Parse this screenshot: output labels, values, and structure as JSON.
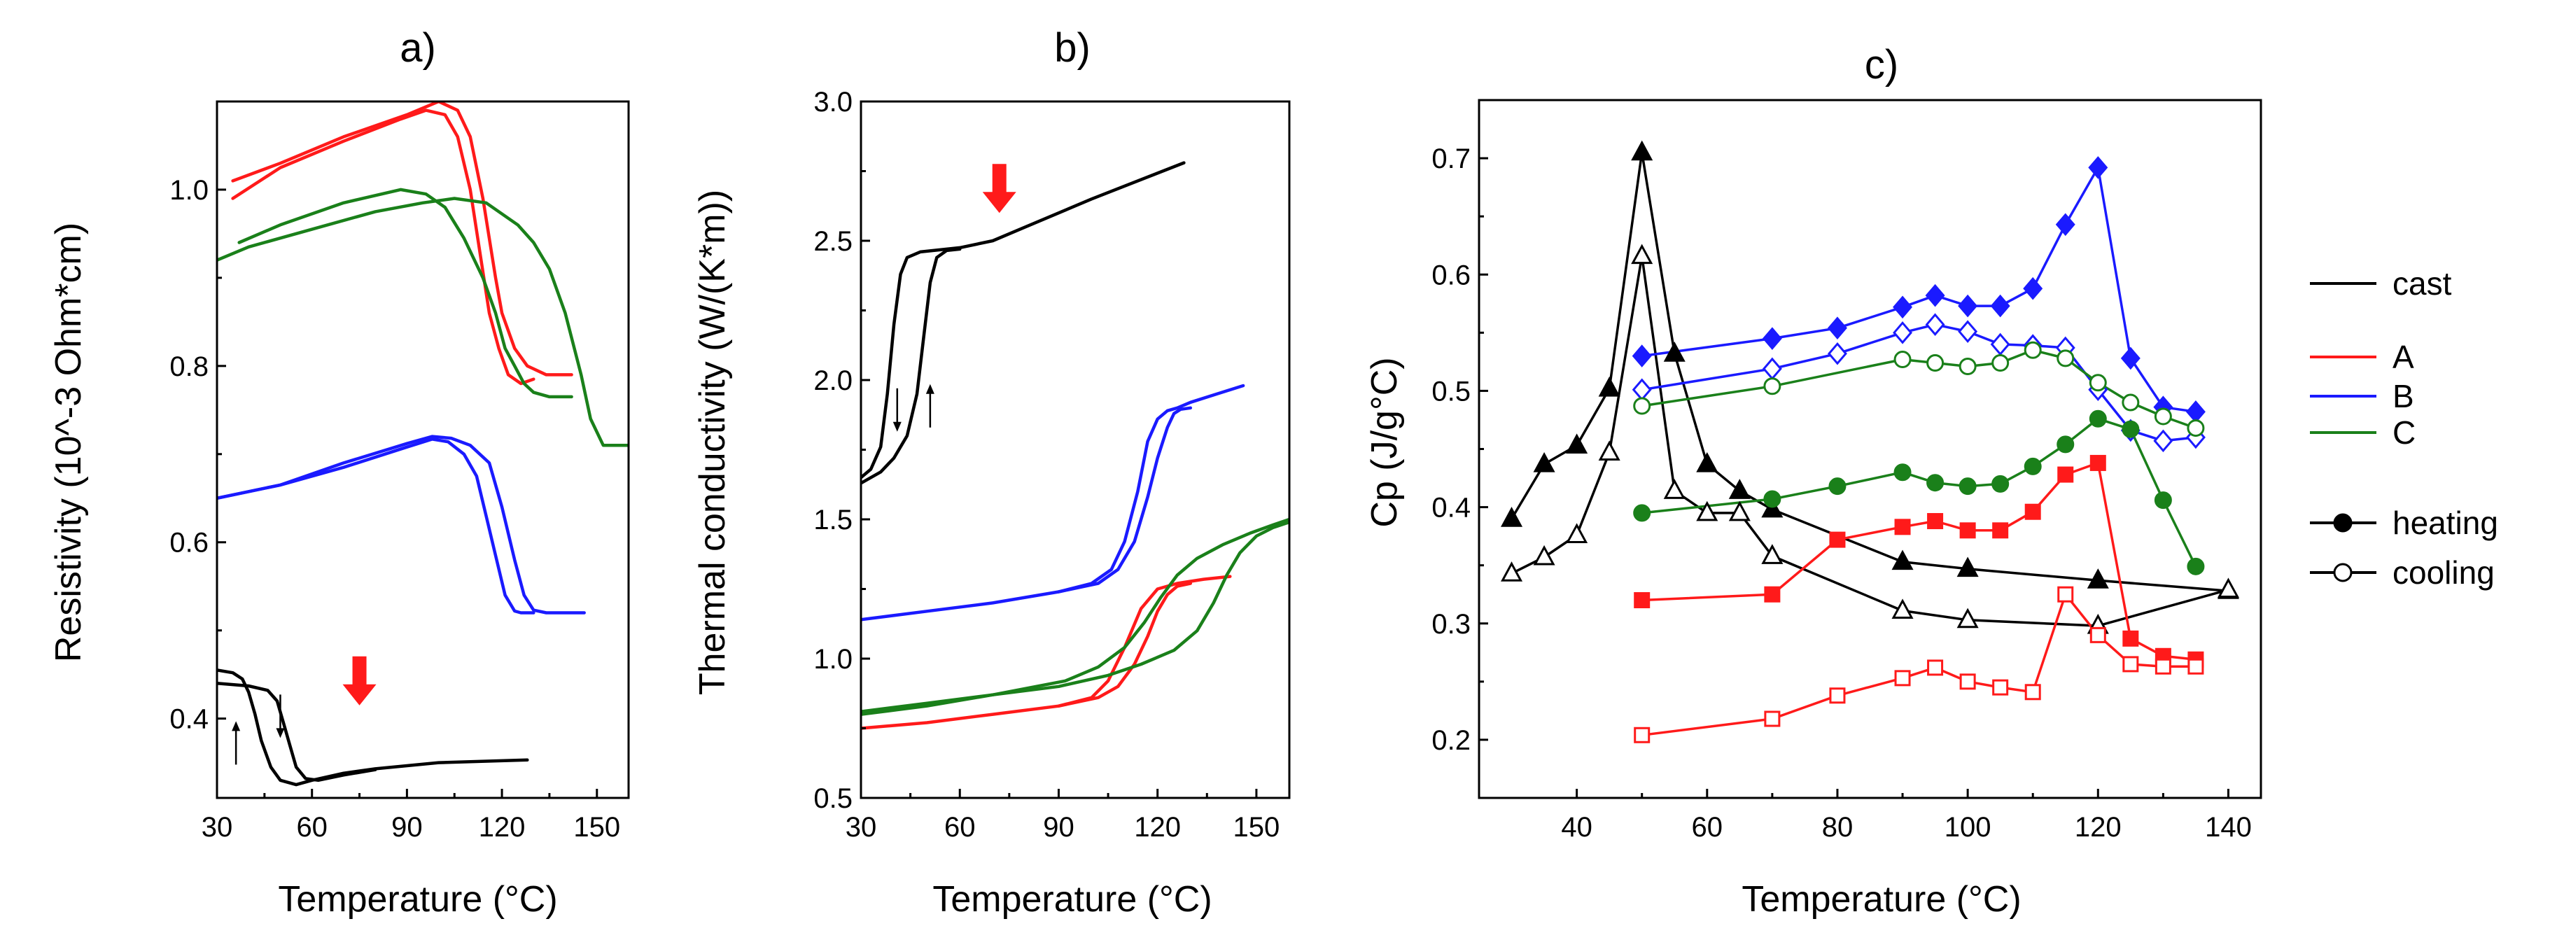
{
  "colors": {
    "cast": "#000000",
    "A": "#ff1a1a",
    "B": "#1a1aff",
    "C": "#1a801a",
    "arrow": "#ff1a1a"
  },
  "legend": {
    "series": [
      {
        "label": "cast",
        "color": "#000000"
      },
      {
        "label": "A",
        "color": "#ff1a1a"
      },
      {
        "label": "B",
        "color": "#1a1aff"
      },
      {
        "label": "C",
        "color": "#1a801a"
      }
    ],
    "markers": [
      {
        "label": "heating",
        "filled": true
      },
      {
        "label": "cooling",
        "filled": false
      }
    ]
  },
  "chart_data": [
    {
      "panel": "a)",
      "type": "line",
      "xlabel": "Temperature (°C)",
      "ylabel": "Resistivity (10^-3 Ohm*cm)",
      "xlim": [
        30,
        160
      ],
      "ylim": [
        0.31,
        1.1
      ],
      "xticks": [
        30,
        60,
        90,
        120,
        150
      ],
      "yticks": [
        0.4,
        0.6,
        0.8,
        1.0
      ],
      "xtick_labels": [
        "30",
        "60",
        "90",
        "120",
        "150"
      ],
      "ytick_labels": [
        "0.4",
        "0.6",
        "0.8",
        "1.0"
      ],
      "arrow_marker_x": 75,
      "series": [
        {
          "name": "A",
          "color": "#ff1a1a",
          "x": [
            35,
            50,
            70,
            90,
            100,
            106,
            110,
            114,
            118,
            120,
            124,
            128,
            134,
            142
          ],
          "y": [
            1.01,
            1.03,
            1.06,
            1.085,
            1.1,
            1.09,
            1.06,
            0.99,
            0.9,
            0.86,
            0.82,
            0.8,
            0.79,
            0.79
          ]
        },
        {
          "name": "A",
          "color": "#ff1a1a",
          "x": [
            35,
            50,
            70,
            88,
            96,
            102,
            106,
            110,
            113,
            116,
            119,
            122,
            126,
            130
          ],
          "y": [
            0.99,
            1.025,
            1.055,
            1.08,
            1.09,
            1.085,
            1.06,
            1.0,
            0.93,
            0.86,
            0.82,
            0.79,
            0.78,
            0.785
          ]
        },
        {
          "name": "C",
          "color": "#1a801a",
          "x": [
            37,
            50,
            70,
            88,
            96,
            102,
            108,
            114,
            118,
            121,
            124,
            127,
            130,
            135,
            142
          ],
          "y": [
            0.94,
            0.96,
            0.985,
            1.0,
            0.995,
            0.98,
            0.945,
            0.9,
            0.86,
            0.82,
            0.8,
            0.78,
            0.77,
            0.765,
            0.765
          ]
        },
        {
          "name": "C",
          "color": "#1a801a",
          "x": [
            30,
            40,
            60,
            80,
            95,
            105,
            115,
            125,
            130,
            135,
            140,
            145,
            148,
            152,
            160
          ],
          "y": [
            0.92,
            0.935,
            0.955,
            0.975,
            0.985,
            0.99,
            0.985,
            0.96,
            0.94,
            0.91,
            0.86,
            0.79,
            0.74,
            0.71,
            0.71
          ]
        },
        {
          "name": "B",
          "color": "#1a1aff",
          "x": [
            30,
            50,
            70,
            90,
            98,
            103,
            108,
            112,
            115,
            118,
            121,
            124,
            126,
            130
          ],
          "y": [
            0.65,
            0.665,
            0.685,
            0.708,
            0.717,
            0.714,
            0.7,
            0.675,
            0.63,
            0.585,
            0.54,
            0.522,
            0.52,
            0.52
          ]
        },
        {
          "name": "B",
          "color": "#1a1aff",
          "x": [
            30,
            50,
            70,
            90,
            98,
            104,
            110,
            116,
            120,
            124,
            127,
            130,
            134,
            146
          ],
          "y": [
            0.65,
            0.665,
            0.69,
            0.712,
            0.72,
            0.718,
            0.71,
            0.69,
            0.64,
            0.58,
            0.54,
            0.523,
            0.52,
            0.52
          ]
        },
        {
          "name": "cast",
          "color": "#000000",
          "x": [
            30,
            35,
            38,
            40,
            42,
            44,
            47,
            50,
            55,
            60,
            70,
            80,
            100,
            128
          ],
          "y": [
            0.455,
            0.452,
            0.445,
            0.43,
            0.405,
            0.375,
            0.345,
            0.33,
            0.325,
            0.33,
            0.338,
            0.343,
            0.35,
            0.353
          ]
        },
        {
          "name": "cast",
          "color": "#000000",
          "x": [
            30,
            40,
            46,
            49,
            51,
            53,
            55,
            58,
            62,
            70,
            80
          ],
          "y": [
            0.44,
            0.437,
            0.432,
            0.42,
            0.395,
            0.37,
            0.345,
            0.332,
            0.33,
            0.336,
            0.342
          ]
        }
      ],
      "small_arrows": [
        {
          "x": 36,
          "y": 0.37,
          "direction": "up"
        },
        {
          "x": 50,
          "y": 0.405,
          "direction": "down"
        }
      ]
    },
    {
      "panel": "b)",
      "type": "line",
      "xlabel": "Temperature (°C)",
      "ylabel": "Thermal conductivity (W/(K*m))",
      "xlim": [
        30,
        160
      ],
      "ylim": [
        0.5,
        3.0
      ],
      "xticks": [
        30,
        60,
        90,
        120,
        150
      ],
      "yticks": [
        0.5,
        1.0,
        1.5,
        2.0,
        2.5,
        3.0
      ],
      "xtick_labels": [
        "30",
        "60",
        "90",
        "120",
        "150"
      ],
      "ytick_labels": [
        "0.5",
        "1.0",
        "1.5",
        "2.0",
        "2.5",
        "3.0"
      ],
      "arrow_marker_x": 72,
      "series": [
        {
          "name": "cast",
          "color": "#000000",
          "x": [
            30,
            33,
            36,
            38,
            40,
            42,
            44,
            48,
            52,
            56,
            60,
            70,
            80,
            100,
            128
          ],
          "y": [
            1.65,
            1.68,
            1.76,
            1.95,
            2.2,
            2.38,
            2.44,
            2.46,
            2.465,
            2.47,
            2.475,
            2.5,
            2.55,
            2.65,
            2.78
          ]
        },
        {
          "name": "cast",
          "color": "#000000",
          "x": [
            30,
            36,
            40,
            44,
            47,
            49,
            51,
            53,
            56,
            60
          ],
          "y": [
            1.63,
            1.67,
            1.72,
            1.8,
            1.95,
            2.15,
            2.35,
            2.44,
            2.465,
            2.47
          ]
        },
        {
          "name": "B",
          "color": "#1a1aff",
          "x": [
            30,
            50,
            70,
            90,
            100,
            106,
            110,
            114,
            117,
            120,
            123,
            126,
            130,
            138,
            146
          ],
          "y": [
            1.14,
            1.17,
            1.2,
            1.24,
            1.27,
            1.32,
            1.42,
            1.6,
            1.78,
            1.86,
            1.89,
            1.9,
            1.92,
            1.95,
            1.98
          ]
        },
        {
          "name": "B",
          "color": "#1a1aff",
          "x": [
            90,
            102,
            108,
            113,
            117,
            120,
            123,
            125,
            127,
            130
          ],
          "y": [
            1.24,
            1.27,
            1.32,
            1.42,
            1.58,
            1.72,
            1.83,
            1.88,
            1.895,
            1.9
          ]
        },
        {
          "name": "A",
          "color": "#ff1a1a",
          "x": [
            30,
            50,
            70,
            90,
            100,
            105,
            110,
            115,
            120,
            126,
            134,
            142
          ],
          "y": [
            0.75,
            0.77,
            0.8,
            0.83,
            0.86,
            0.92,
            1.04,
            1.18,
            1.25,
            1.27,
            1.285,
            1.295
          ]
        },
        {
          "name": "A",
          "color": "#ff1a1a",
          "x": [
            90,
            102,
            108,
            113,
            117,
            120,
            123,
            126,
            130
          ],
          "y": [
            0.83,
            0.86,
            0.9,
            0.98,
            1.08,
            1.17,
            1.23,
            1.26,
            1.27
          ]
        },
        {
          "name": "C",
          "color": "#1a801a",
          "x": [
            30,
            50,
            70,
            90,
            105,
            115,
            125,
            132,
            137,
            141,
            145,
            150,
            155,
            160
          ],
          "y": [
            0.81,
            0.84,
            0.87,
            0.9,
            0.94,
            0.98,
            1.03,
            1.1,
            1.2,
            1.3,
            1.38,
            1.44,
            1.47,
            1.49
          ]
        },
        {
          "name": "C",
          "color": "#1a801a",
          "x": [
            30,
            50,
            70,
            92,
            102,
            110,
            116,
            121,
            126,
            132,
            140,
            148,
            155,
            160
          ],
          "y": [
            0.8,
            0.83,
            0.87,
            0.92,
            0.97,
            1.04,
            1.13,
            1.22,
            1.3,
            1.36,
            1.41,
            1.45,
            1.48,
            1.5
          ]
        }
      ],
      "small_arrows": [
        {
          "x": 41,
          "y": 1.9,
          "direction": "down"
        },
        {
          "x": 51,
          "y": 1.9,
          "direction": "up"
        }
      ]
    },
    {
      "panel": "c)",
      "type": "line",
      "xlabel": "Temperature (°C)",
      "ylabel": "Cp (J/g°C)",
      "xlim": [
        25,
        145
      ],
      "ylim": [
        0.15,
        0.75
      ],
      "xticks": [
        40,
        60,
        80,
        100,
        120,
        140
      ],
      "yticks": [
        0.2,
        0.3,
        0.4,
        0.5,
        0.6,
        0.7
      ],
      "xtick_labels": [
        "40",
        "60",
        "80",
        "100",
        "120",
        "140"
      ],
      "ytick_labels": [
        "0.2",
        "0.3",
        "0.4",
        "0.5",
        "0.6",
        "0.7"
      ],
      "series": [
        {
          "name": "cast heating",
          "color": "#000000",
          "marker": "triangle",
          "filled": true,
          "x": [
            30,
            35,
            40,
            45,
            50,
            55,
            60,
            65,
            70,
            90,
            100,
            120,
            140
          ],
          "y": [
            0.39,
            0.437,
            0.453,
            0.502,
            0.705,
            0.532,
            0.437,
            0.414,
            0.398,
            0.353,
            0.347,
            0.337,
            0.328
          ]
        },
        {
          "name": "cast cooling",
          "color": "#000000",
          "marker": "triangle",
          "filled": false,
          "x": [
            30,
            35,
            40,
            45,
            50,
            55,
            60,
            65,
            70,
            90,
            100,
            120,
            140
          ],
          "y": [
            0.343,
            0.357,
            0.376,
            0.447,
            0.616,
            0.414,
            0.395,
            0.395,
            0.358,
            0.311,
            0.303,
            0.298,
            0.329
          ]
        },
        {
          "name": "A heating",
          "color": "#ff1a1a",
          "marker": "square",
          "filled": true,
          "x": [
            50,
            70,
            80,
            90,
            95,
            100,
            105,
            110,
            115,
            120,
            125,
            130,
            135
          ],
          "y": [
            0.32,
            0.325,
            0.372,
            0.383,
            0.388,
            0.38,
            0.38,
            0.396,
            0.428,
            0.438,
            0.287,
            0.272,
            0.269
          ]
        },
        {
          "name": "A cooling",
          "color": "#ff1a1a",
          "marker": "square",
          "filled": false,
          "x": [
            50,
            70,
            80,
            90,
            95,
            100,
            105,
            110,
            115,
            120,
            125,
            130,
            135
          ],
          "y": [
            0.204,
            0.218,
            0.238,
            0.253,
            0.262,
            0.25,
            0.245,
            0.241,
            0.325,
            0.29,
            0.265,
            0.263,
            0.263
          ]
        },
        {
          "name": "B heating",
          "color": "#1a1aff",
          "marker": "diamond",
          "filled": true,
          "x": [
            50,
            70,
            80,
            90,
            95,
            100,
            105,
            110,
            115,
            120,
            125,
            130,
            135
          ],
          "y": [
            0.53,
            0.545,
            0.554,
            0.572,
            0.582,
            0.573,
            0.573,
            0.588,
            0.643,
            0.692,
            0.528,
            0.486,
            0.482
          ]
        },
        {
          "name": "B cooling",
          "color": "#1a1aff",
          "marker": "diamond",
          "filled": false,
          "x": [
            50,
            70,
            80,
            90,
            95,
            100,
            105,
            110,
            115,
            120,
            125,
            130,
            135
          ],
          "y": [
            0.501,
            0.519,
            0.532,
            0.55,
            0.557,
            0.551,
            0.54,
            0.539,
            0.537,
            0.501,
            0.466,
            0.457,
            0.46
          ]
        },
        {
          "name": "C heating",
          "color": "#1a801a",
          "marker": "circle",
          "filled": true,
          "x": [
            50,
            70,
            80,
            90,
            95,
            100,
            105,
            110,
            115,
            120,
            125,
            130,
            135
          ],
          "y": [
            0.395,
            0.407,
            0.418,
            0.43,
            0.421,
            0.418,
            0.42,
            0.435,
            0.454,
            0.476,
            0.467,
            0.406,
            0.349
          ]
        },
        {
          "name": "C cooling",
          "color": "#1a801a",
          "marker": "circle",
          "filled": false,
          "x": [
            50,
            70,
            90,
            95,
            100,
            105,
            110,
            115,
            120,
            125,
            130,
            135
          ],
          "y": [
            0.487,
            0.504,
            0.527,
            0.524,
            0.521,
            0.524,
            0.535,
            0.528,
            0.507,
            0.49,
            0.478,
            0.468
          ]
        }
      ]
    }
  ]
}
